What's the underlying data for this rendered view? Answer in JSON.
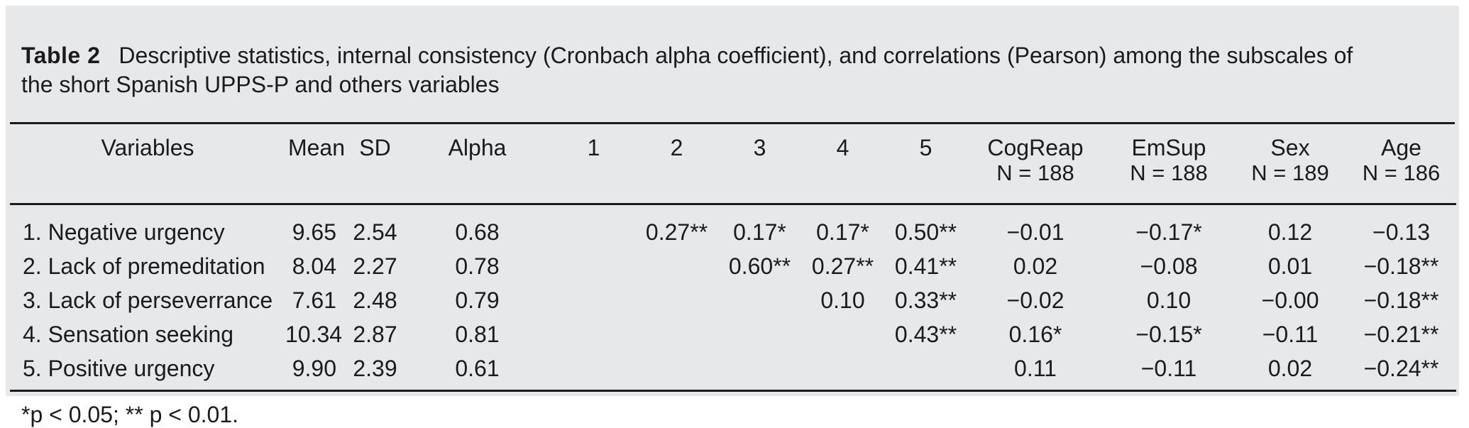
{
  "title": {
    "label": "Table 2",
    "text": "Descriptive statistics, internal consistency (Cronbach alpha coefficient), and correlations (Pearson) among the subscales of the short Spanish UPPS-P and others variables"
  },
  "table": {
    "columns": [
      {
        "key": "variables",
        "label": "Variables",
        "sub": ""
      },
      {
        "key": "mean",
        "label": "Mean",
        "sub": ""
      },
      {
        "key": "sd",
        "label": "SD",
        "sub": ""
      },
      {
        "key": "alpha",
        "label": "Alpha",
        "sub": ""
      },
      {
        "key": "c1",
        "label": "1",
        "sub": ""
      },
      {
        "key": "c2",
        "label": "2",
        "sub": ""
      },
      {
        "key": "c3",
        "label": "3",
        "sub": ""
      },
      {
        "key": "c4",
        "label": "4",
        "sub": ""
      },
      {
        "key": "c5",
        "label": "5",
        "sub": ""
      },
      {
        "key": "cogreap",
        "label": "CogReap",
        "sub": "N = 188"
      },
      {
        "key": "emsup",
        "label": "EmSup",
        "sub": "N = 188"
      },
      {
        "key": "sex",
        "label": "Sex",
        "sub": "N = 189"
      },
      {
        "key": "age",
        "label": "Age",
        "sub": "N = 186"
      }
    ],
    "rows": [
      [
        "1. Negative urgency",
        "9.65",
        "2.54",
        "0.68",
        "",
        "0.27**",
        "0.17*",
        "0.17*",
        "0.50**",
        "−0.01",
        "−0.17*",
        "0.12",
        "−0.13"
      ],
      [
        "2. Lack of premeditation",
        "8.04",
        "2.27",
        "0.78",
        "",
        "",
        "0.60**",
        "0.27**",
        "0.41**",
        "0.02",
        "−0.08",
        "0.01",
        "−0.18**"
      ],
      [
        "3. Lack of perseverrance",
        "7.61",
        "2.48",
        "0.79",
        "",
        "",
        "",
        "0.10",
        "0.33**",
        "−0.02",
        "0.10",
        "−0.00",
        "−0.18**"
      ],
      [
        "4. Sensation seeking",
        "10.34",
        "2.87",
        "0.81",
        "",
        "",
        "",
        "",
        "0.43**",
        "0.16*",
        "−0.15*",
        "−0.11",
        "−0.21**"
      ],
      [
        "5. Positive urgency",
        "9.90",
        "2.39",
        "0.61",
        "",
        "",
        "",
        "",
        "",
        "0.11",
        "−0.11",
        "0.02",
        "−0.24**"
      ]
    ]
  },
  "footnote": "*p < 0.05; ** p < 0.01.",
  "colors": {
    "panel_bg": "#e7e8e9",
    "text": "#1b1b1d",
    "rule": "#1b1b1d"
  }
}
